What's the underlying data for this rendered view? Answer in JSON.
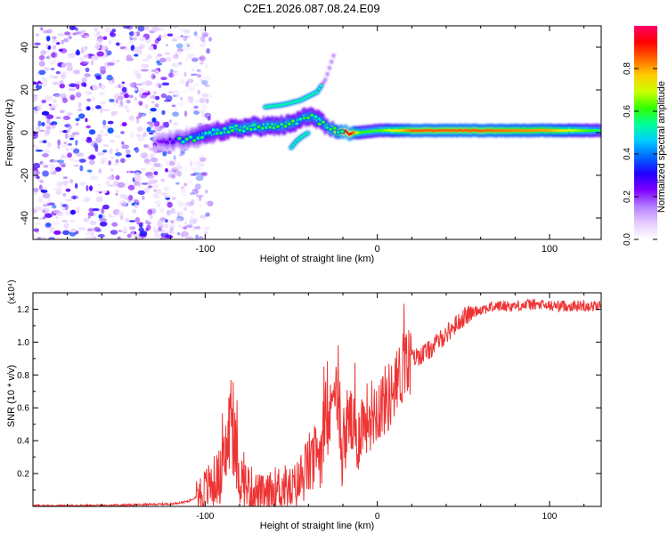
{
  "chart_data": [
    {
      "type": "heatmap",
      "title": "C2E1.2026.087.08.24.E09",
      "xlabel": "Height of straight line (km)",
      "ylabel": "Frequency (Hz)",
      "xlim": [
        -200,
        130
      ],
      "ylim": [
        -50,
        50
      ],
      "x_ticks": [
        -100,
        0,
        100
      ],
      "y_ticks": [
        -40,
        -20,
        0,
        20,
        40
      ],
      "colorbar": {
        "label": "Normalized spectral amplitude",
        "range": [
          0,
          1
        ],
        "ticks": [
          0.0,
          0.2,
          0.4,
          0.6,
          0.8
        ],
        "colormap": [
          "#ffffff",
          "#e6ccff",
          "#b380ff",
          "#7f00ff",
          "#2200ff",
          "#0066ff",
          "#00ccff",
          "#00ff99",
          "#33ff00",
          "#ccff00",
          "#ffcc00",
          "#ff6600",
          "#ff0000",
          "#ff0066"
        ]
      },
      "ridge": {
        "x": [
          -130,
          -110,
          -100,
          -90,
          -80,
          -70,
          -60,
          -50,
          -45,
          -40,
          -35,
          -30,
          -25,
          -20,
          -15,
          -10,
          0,
          20,
          60,
          100,
          130
        ],
        "y": [
          -5,
          -3,
          -1,
          1,
          2,
          3,
          3,
          4,
          6,
          8,
          6,
          3,
          1,
          0,
          0,
          0,
          1,
          1,
          1,
          1,
          1
        ],
        "amplitude": [
          0.2,
          0.35,
          0.45,
          0.5,
          0.55,
          0.55,
          0.55,
          0.55,
          0.5,
          0.55,
          0.5,
          0.55,
          0.7,
          0.95,
          0.9,
          0.6,
          0.6,
          0.85,
          0.85,
          0.8,
          0.55
        ]
      },
      "branches": [
        {
          "name": "upper-branch",
          "x": [
            -65,
            -55,
            -45,
            -35,
            -30,
            -25
          ],
          "y": [
            12,
            13,
            15,
            19,
            25,
            37
          ]
        },
        {
          "name": "lower-branch",
          "x": [
            -50,
            -47,
            -44,
            -40
          ],
          "y": [
            -7,
            -4,
            -2,
            0
          ]
        }
      ],
      "noise_region_x": [
        -200,
        -105
      ]
    },
    {
      "type": "line",
      "xlabel": "Height of straight line (km)",
      "ylabel": "SNR (10 * v/v)",
      "y_multiplier": "(x10⁴)",
      "xlim": [
        -200,
        130
      ],
      "ylim": [
        0,
        1.3
      ],
      "x_ticks": [
        -100,
        0,
        100
      ],
      "y_ticks": [
        0.2,
        0.4,
        0.6,
        0.8,
        1.0,
        1.2
      ],
      "series": [
        {
          "name": "SNR",
          "color": "#ee3333",
          "x": [
            -200,
            -180,
            -160,
            -140,
            -120,
            -110,
            -105,
            -100,
            -95,
            -90,
            -87,
            -85,
            -82,
            -80,
            -75,
            -70,
            -65,
            -60,
            -55,
            -50,
            -45,
            -40,
            -35,
            -30,
            -27,
            -25,
            -22,
            -20,
            -17,
            -15,
            -12,
            -10,
            -5,
            0,
            5,
            10,
            15,
            20,
            25,
            30,
            35,
            40,
            45,
            50,
            55,
            60,
            70,
            80,
            90,
            100,
            110,
            120,
            130
          ],
          "y": [
            0.005,
            0.005,
            0.005,
            0.01,
            0.015,
            0.03,
            0.06,
            0.1,
            0.15,
            0.2,
            0.38,
            0.55,
            0.3,
            0.18,
            0.12,
            0.08,
            0.06,
            0.1,
            0.12,
            0.1,
            0.15,
            0.25,
            0.3,
            0.45,
            0.55,
            0.85,
            0.45,
            0.3,
            0.55,
            0.5,
            0.35,
            0.5,
            0.55,
            0.6,
            0.65,
            0.7,
            0.85,
            0.9,
            0.92,
            0.95,
            1.0,
            1.05,
            1.1,
            1.15,
            1.18,
            1.2,
            1.22,
            1.22,
            1.23,
            1.22,
            1.22,
            1.22,
            1.22
          ]
        }
      ]
    }
  ]
}
